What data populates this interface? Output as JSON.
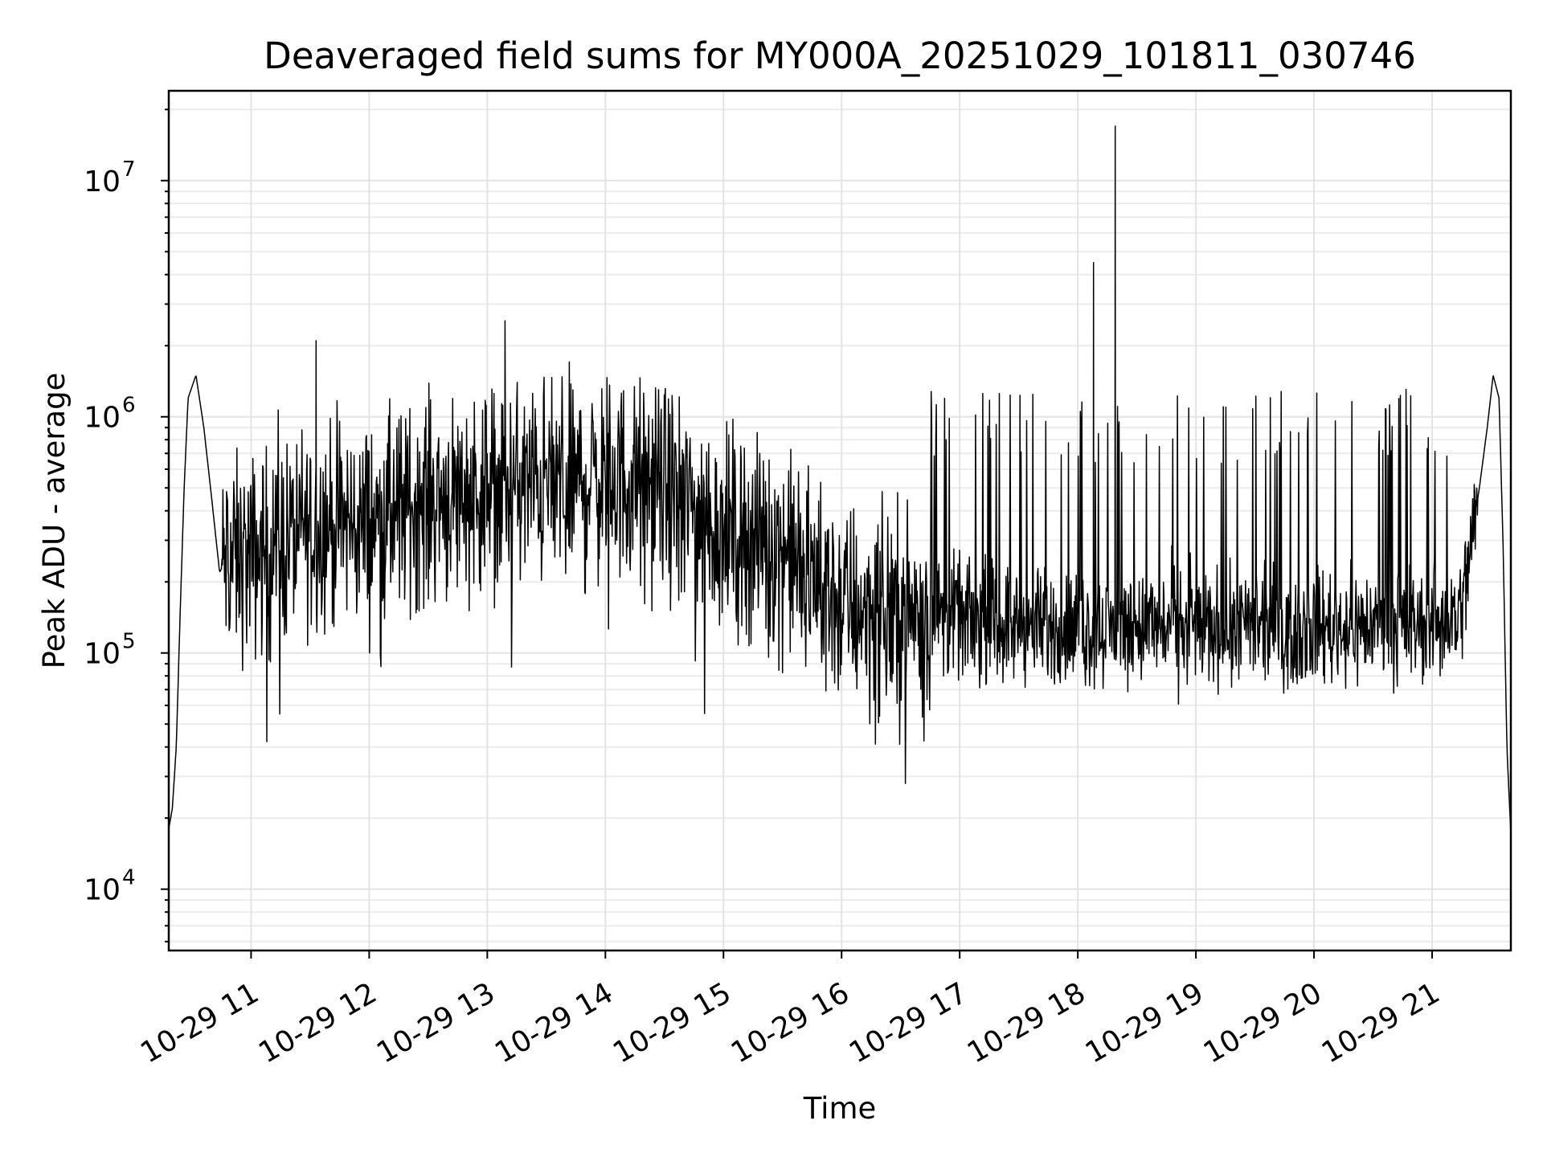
{
  "chart_data": {
    "type": "line",
    "title": "Deaveraged field sums for MY000A_20251029_101811_030746",
    "xlabel": "Time",
    "ylabel": "Peak ADU - average",
    "yscale": "log",
    "ylim": [
      5500,
      24000000
    ],
    "xlim": [
      "2025-10-29 10:18:11",
      "2025-10-29 21:40:00"
    ],
    "grid": true,
    "legend": "none",
    "x_ticks": [
      {
        "value": "2025-10-29 11:00",
        "label": "10-29 11"
      },
      {
        "value": "2025-10-29 12:00",
        "label": "10-29 12"
      },
      {
        "value": "2025-10-29 13:00",
        "label": "10-29 13"
      },
      {
        "value": "2025-10-29 14:00",
        "label": "10-29 14"
      },
      {
        "value": "2025-10-29 15:00",
        "label": "10-29 15"
      },
      {
        "value": "2025-10-29 16:00",
        "label": "10-29 16"
      },
      {
        "value": "2025-10-29 17:00",
        "label": "10-29 17"
      },
      {
        "value": "2025-10-29 18:00",
        "label": "10-29 18"
      },
      {
        "value": "2025-10-29 19:00",
        "label": "10-29 19"
      },
      {
        "value": "2025-10-29 20:00",
        "label": "10-29 20"
      },
      {
        "value": "2025-10-29 21:00",
        "label": "10-29 21"
      }
    ],
    "y_ticks": [
      {
        "value": 10000,
        "base": "10",
        "exp": "4"
      },
      {
        "value": 100000,
        "base": "10",
        "exp": "5"
      },
      {
        "value": 1000000,
        "base": "10",
        "exp": "6"
      },
      {
        "value": 10000000,
        "base": "10",
        "exp": "7"
      }
    ],
    "series": [
      {
        "color": "#000000",
        "x": [
          "2025-10-29 10:18:11",
          "2025-10-29 10:20",
          "2025-10-29 10:22",
          "2025-10-29 10:24",
          "2025-10-29 10:26",
          "2025-10-29 10:28",
          "2025-10-29 10:32",
          "2025-10-29 10:36",
          "2025-10-29 10:40",
          "2025-10-29 10:44",
          "2025-10-29 10:48",
          "2025-10-29 11:00",
          "2025-10-29 11:30",
          "2025-10-29 12:00",
          "2025-10-29 12:30",
          "2025-10-29 13:00",
          "2025-10-29 13:30",
          "2025-10-29 14:00",
          "2025-10-29 14:30",
          "2025-10-29 15:00",
          "2025-10-29 15:30",
          "2025-10-29 16:00",
          "2025-10-29 16:30",
          "2025-10-29 17:00",
          "2025-10-29 17:30",
          "2025-10-29 18:00",
          "2025-10-29 18:30",
          "2025-10-29 19:00",
          "2025-10-29 19:30",
          "2025-10-29 20:00",
          "2025-10-29 20:30",
          "2025-10-29 21:00",
          "2025-10-29 21:15",
          "2025-10-29 21:20",
          "2025-10-29 21:24",
          "2025-10-29 21:28",
          "2025-10-29 21:31",
          "2025-10-29 21:34",
          "2025-10-29 21:36",
          "2025-10-29 21:38",
          "2025-10-29 21:40"
        ],
        "y": [
          18000,
          22000,
          40000,
          150000,
          500000,
          1200000,
          1500000,
          900000,
          450000,
          220000,
          250000,
          250000,
          350000,
          350000,
          450000,
          500000,
          520000,
          550000,
          500000,
          330000,
          280000,
          160000,
          150000,
          140000,
          130000,
          125000,
          130000,
          130000,
          125000,
          130000,
          130000,
          130000,
          150000,
          300000,
          500000,
          900000,
          1500000,
          1200000,
          300000,
          40000,
          17000
        ],
        "peaks": [
          {
            "x": "2025-10-29 11:33",
            "y": 2100000
          },
          {
            "x": "2025-10-29 13:09",
            "y": 2550000
          },
          {
            "x": "2025-10-29 18:08",
            "y": 4500000
          },
          {
            "x": "2025-10-29 18:19",
            "y": 17000000
          }
        ]
      }
    ]
  }
}
